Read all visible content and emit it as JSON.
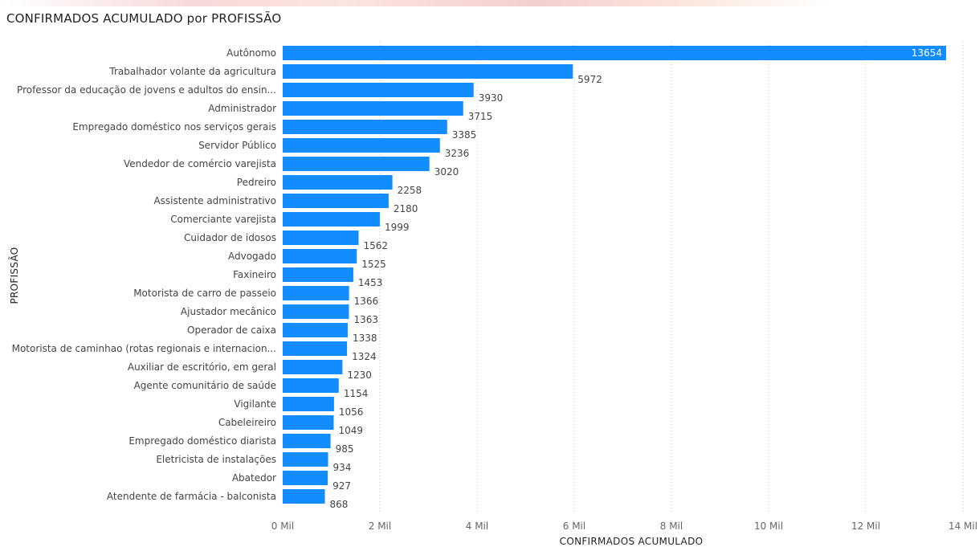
{
  "chart_data": {
    "type": "bar",
    "orientation": "horizontal",
    "title": "CONFIRMADOS ACUMULADO por PROFISSÃO",
    "xlabel": "CONFIRMADOS ACUMULADO",
    "ylabel": "PROFISSÃO",
    "xlim": [
      0,
      14000
    ],
    "xticks": [
      0,
      2000,
      4000,
      6000,
      8000,
      10000,
      12000,
      14000
    ],
    "xtick_labels": [
      "0 Mil",
      "2 Mil",
      "4 Mil",
      "6 Mil",
      "8 Mil",
      "10 Mil",
      "12 Mil",
      "14 Mil"
    ],
    "grid": "vertical dotted",
    "bar_color": "#118dff",
    "categories": [
      "Autônomo",
      "Trabalhador volante da agricultura",
      "Professor da educação de jovens e adultos do ensin...",
      "Administrador",
      "Empregado doméstico nos serviços gerais",
      "Servidor Público",
      "Vendedor de comércio varejista",
      "Pedreiro",
      "Assistente administrativo",
      "Comerciante varejista",
      "Cuidador de idosos",
      "Advogado",
      "Faxineiro",
      "Motorista de carro de passeio",
      "Ajustador mecânico",
      "Operador de caixa",
      "Motorista de caminhao (rotas regionais e internacion...",
      "Auxiliar de escritório, em geral",
      "Agente comunitário de saúde",
      "Vigilante",
      "Cabeleireiro",
      "Empregado doméstico diarista",
      "Eletricista de instalações",
      "Abatedor",
      "Atendente de farmácia - balconista"
    ],
    "values": [
      13654,
      5972,
      3930,
      3715,
      3385,
      3236,
      3020,
      2258,
      2180,
      1999,
      1562,
      1525,
      1453,
      1366,
      1363,
      1338,
      1324,
      1230,
      1154,
      1056,
      1049,
      985,
      934,
      927,
      868
    ]
  }
}
